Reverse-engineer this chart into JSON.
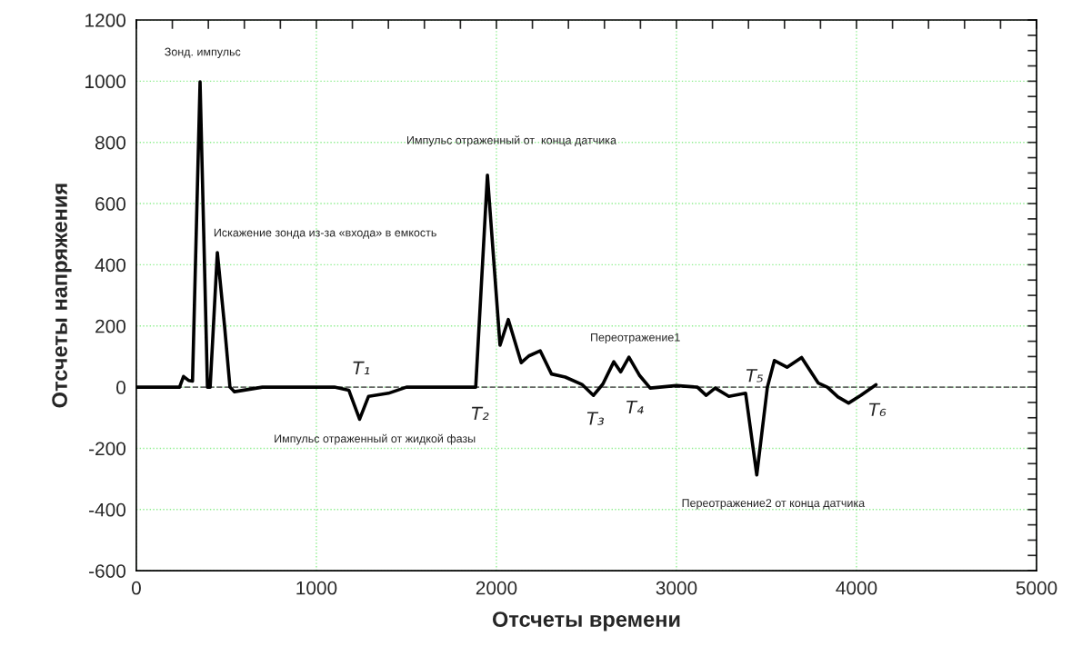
{
  "chart_data": {
    "type": "line",
    "xlabel": "Отсчеты времени",
    "ylabel": "Отсчеты напряжения",
    "x": [
      0,
      240,
      262,
      290,
      312,
      354,
      395,
      410,
      450,
      490,
      520,
      545,
      700,
      900,
      1100,
      1180,
      1240,
      1290,
      1400,
      1500,
      1700,
      1885,
      1950,
      2020,
      2066,
      2138,
      2180,
      2243,
      2306,
      2382,
      2475,
      2539,
      2591,
      2652,
      2690,
      2736,
      2794,
      2854,
      3000,
      3116,
      3165,
      3215,
      3291,
      3384,
      3446,
      3505,
      3544,
      3614,
      3695,
      3788,
      3838,
      3897,
      3956,
      4023,
      4108
    ],
    "series": [
      {
        "color": "#000000",
        "values": [
          0,
          0,
          35,
          22,
          20,
          998,
          0,
          0,
          440,
          200,
          0,
          -15,
          0,
          0,
          0,
          -10,
          -105,
          -30,
          -20,
          0,
          0,
          0,
          693,
          137,
          221,
          80,
          102,
          119,
          43,
          33,
          9,
          -27,
          10,
          83,
          50,
          98,
          39,
          -3,
          5,
          0,
          -27,
          -3,
          -30,
          -20,
          -287,
          0,
          87,
          65,
          97,
          13,
          0,
          -32,
          -52,
          -27,
          8
        ]
      }
    ],
    "xlim": [
      0,
      5000
    ],
    "ylim": [
      -600,
      1200
    ],
    "xticks": [
      0,
      {
        "value": 200,
        "label": null
      },
      {
        "value": 400,
        "label": null
      },
      {
        "value": 600,
        "label": null
      },
      {
        "value": 800,
        "label": null
      },
      1000,
      {
        "value": 1200,
        "label": null
      },
      {
        "value": 1400,
        "label": null
      },
      {
        "value": 1600,
        "label": null
      },
      {
        "value": 1800,
        "label": null
      },
      2000,
      {
        "value": 2200,
        "label": null
      },
      {
        "value": 2400,
        "label": null
      },
      {
        "value": 2600,
        "label": null
      },
      {
        "value": 2800,
        "label": null
      },
      3000,
      {
        "value": 3200,
        "label": null
      },
      {
        "value": 3400,
        "label": null
      },
      {
        "value": 3600,
        "label": null
      },
      {
        "value": 3800,
        "label": null
      },
      4000,
      {
        "value": 4200,
        "label": null
      },
      {
        "value": 4400,
        "label": null
      },
      {
        "value": 4600,
        "label": null
      },
      {
        "value": 4800,
        "label": null
      },
      5000
    ],
    "yticks": [
      -600,
      {
        "value": -550,
        "label": null
      },
      {
        "value": -500,
        "label": null
      },
      {
        "value": -450,
        "label": null
      },
      -400,
      {
        "value": -350,
        "label": null
      },
      {
        "value": -300,
        "label": null
      },
      {
        "value": -250,
        "label": null
      },
      -200,
      {
        "value": -150,
        "label": null
      },
      {
        "value": -100,
        "label": null
      },
      {
        "value": -50,
        "label": null
      },
      0,
      {
        "value": 50,
        "label": null
      },
      {
        "value": 100,
        "label": null
      },
      {
        "value": 150,
        "label": null
      },
      200,
      {
        "value": 250,
        "label": null
      },
      {
        "value": 300,
        "label": null
      },
      {
        "value": 350,
        "label": null
      },
      400,
      {
        "value": 450,
        "label": null
      },
      {
        "value": 500,
        "label": null
      },
      {
        "value": 550,
        "label": null
      },
      600,
      {
        "value": 650,
        "label": null
      },
      {
        "value": 700,
        "label": null
      },
      {
        "value": 750,
        "label": null
      },
      800,
      {
        "value": 850,
        "label": null
      },
      {
        "value": 900,
        "label": null
      },
      {
        "value": 950,
        "label": null
      },
      1000,
      {
        "value": 1050,
        "label": null
      },
      {
        "value": 1100,
        "label": null
      },
      {
        "value": 1150,
        "label": null
      },
      1200
    ],
    "grid": true,
    "line_style": "solid",
    "marker": "none",
    "ref_lines": [
      {
        "axis": "y",
        "value": 0,
        "color": "#666666",
        "line_style": "dashed"
      }
    ],
    "annotations": [
      {
        "text": "Зонд. импульс",
        "x": 354,
        "y": 998
      },
      {
        "text": "Искажение зонда из-за «входа» в емкость",
        "x": 450,
        "y": 440
      },
      {
        "text": "Импульс отраженный от  конца датчика",
        "x": 1950,
        "y": 693
      },
      {
        "text": "Импульс отраженный от жидкой фазы",
        "x": 1240,
        "y": -105
      },
      {
        "text": "Переотражение1",
        "x": 2736,
        "y": 98
      },
      {
        "text": "Переотражение2 от конца датчика",
        "x": 3446,
        "y": -287
      },
      {
        "text": "T₁",
        "x": 1250,
        "y": 0
      },
      {
        "text": "T₂",
        "x": 1909,
        "y": 0
      },
      {
        "text": "T₃",
        "x": 2550,
        "y": 0
      },
      {
        "text": "T₄",
        "x": 2768,
        "y": 0
      },
      {
        "text": "T₅",
        "x": 3434,
        "y": 0
      },
      {
        "text": "T₆",
        "x": 4116,
        "y": 0
      }
    ]
  }
}
